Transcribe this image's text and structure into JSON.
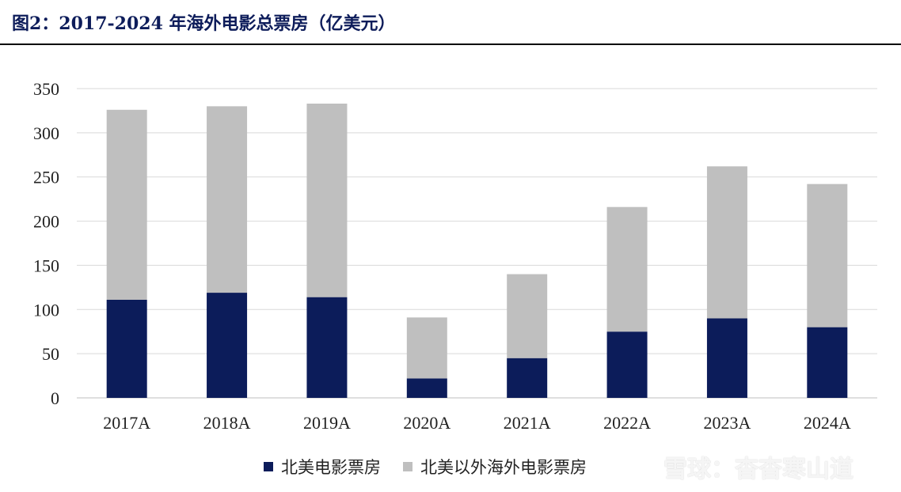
{
  "title": "图2：2017-2024 年海外电影总票房（亿美元）",
  "watermark": "雪球：杳杳寒山道",
  "colors": {
    "north_america": "#0c1c5a",
    "overseas": "#bfbfbf",
    "grid": "#d9d9d9",
    "title": "#0d1c5a"
  },
  "chart_data": {
    "type": "bar",
    "stacked": true,
    "categories": [
      "2017A",
      "2018A",
      "2019A",
      "2020A",
      "2021A",
      "2022A",
      "2023A",
      "2024A"
    ],
    "series": [
      {
        "name": "北美电影票房",
        "values": [
          111,
          119,
          114,
          22,
          45,
          75,
          90,
          80
        ]
      },
      {
        "name": "北美以外海外电影票房",
        "values": [
          215,
          211,
          219,
          69,
          95,
          141,
          172,
          162
        ]
      }
    ],
    "ylim": [
      0,
      350
    ],
    "yticks": [
      "0",
      "50",
      "100",
      "150",
      "200",
      "250",
      "300",
      "350"
    ],
    "grid": true,
    "legend_position": "bottom"
  }
}
